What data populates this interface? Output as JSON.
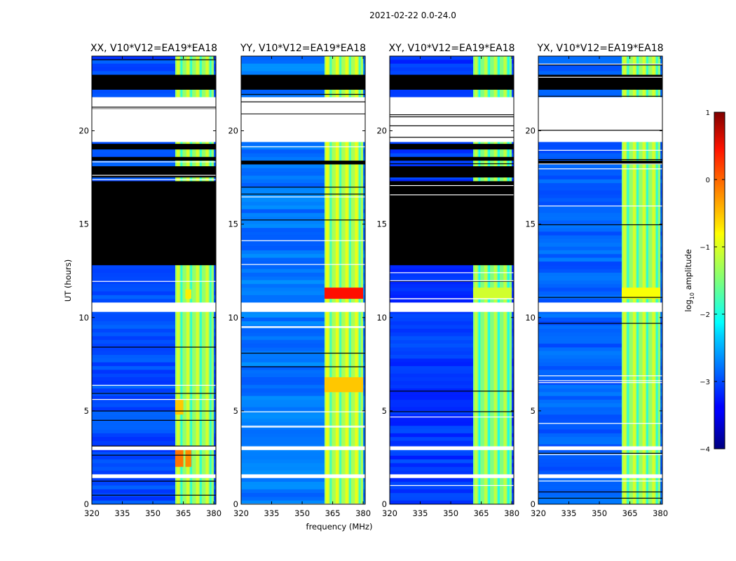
{
  "figure": {
    "suptitle": "2021-02-22 0.0-24.0",
    "colors": {
      "flagged": "#000000",
      "missing": "#ffffff",
      "frame": "#000000"
    }
  },
  "chart_data": {
    "type": "heatmap",
    "xlabel": "frequency (MHz)",
    "ylabel": "UT (hours)",
    "xlim": [
      320,
      381
    ],
    "ylim": [
      0,
      24
    ],
    "xticks": [
      "320",
      "335",
      "350",
      "365",
      "380"
    ],
    "yticks": [
      "0",
      "5",
      "10",
      "15",
      "20"
    ],
    "colorbar": {
      "label_prefix": "log",
      "label_sub": "10",
      "label_suffix": " amplitude",
      "ticks": [
        "1",
        "0",
        "−1",
        "−2",
        "−3",
        "−4"
      ],
      "range": [
        -4,
        1
      ],
      "colormap": "jet"
    },
    "panels": [
      {
        "title": "XX, V10*V12=EA19*EA18",
        "background_log_amp": -3.0,
        "band_mhz": [
          361,
          380
        ],
        "band_log_amp": -1.4,
        "bright": [
          {
            "f0": 361,
            "f1": 365,
            "t0": 2.0,
            "t1": 3.0,
            "log_amp": -0.2
          },
          {
            "f0": 366,
            "f1": 369,
            "t0": 2.0,
            "t1": 3.0,
            "log_amp": -0.3
          },
          {
            "f0": 361,
            "f1": 365,
            "t0": 4.8,
            "t1": 5.6,
            "log_amp": -0.6
          },
          {
            "f0": 366,
            "f1": 369,
            "t0": 11.0,
            "t1": 11.5,
            "log_amp": -0.8
          }
        ],
        "flagged_hours": [
          [
            22.2,
            23.0
          ],
          [
            17.5,
            18.1
          ],
          [
            12.8,
            17.3
          ],
          [
            19.0,
            19.3
          ],
          [
            18.4,
            18.6
          ]
        ],
        "missing_hours": [
          [
            20.0,
            21.8
          ],
          [
            10.3,
            10.8
          ],
          [
            1.4,
            1.6
          ],
          [
            2.9,
            3.1
          ],
          [
            19.4,
            20.0
          ]
        ]
      },
      {
        "title": "YY, V10*V12=EA19*EA18",
        "background_log_amp": -2.8,
        "band_mhz": [
          361,
          380
        ],
        "band_log_amp": -1.3,
        "bright": [
          {
            "f0": 361,
            "f1": 380,
            "t0": 11.0,
            "t1": 11.6,
            "log_amp": 0.3
          },
          {
            "f0": 361,
            "f1": 380,
            "t0": 6.0,
            "t1": 6.8,
            "log_amp": -0.6
          }
        ],
        "flagged_hours": [
          [
            22.2,
            23.0
          ],
          [
            18.2,
            18.4
          ]
        ],
        "missing_hours": [
          [
            19.4,
            21.8
          ],
          [
            10.3,
            10.8
          ],
          [
            1.4,
            1.6
          ],
          [
            2.9,
            3.1
          ]
        ]
      },
      {
        "title": "XY, V10*V12=EA19*EA18",
        "background_log_amp": -3.1,
        "band_mhz": [
          361,
          380
        ],
        "band_log_amp": -1.5,
        "bright": [
          {
            "f0": 361,
            "f1": 380,
            "t0": 11.0,
            "t1": 11.6,
            "log_amp": -1.1
          }
        ],
        "flagged_hours": [
          [
            22.2,
            23.0
          ],
          [
            17.5,
            18.1
          ],
          [
            12.8,
            17.3
          ],
          [
            19.0,
            19.3
          ],
          [
            18.4,
            18.6
          ]
        ],
        "missing_hours": [
          [
            20.0,
            21.8
          ],
          [
            10.3,
            10.8
          ],
          [
            1.4,
            1.6
          ],
          [
            2.9,
            3.1
          ],
          [
            19.4,
            20.0
          ]
        ]
      },
      {
        "title": "YX, V10*V12=EA19*EA18",
        "background_log_amp": -2.9,
        "band_mhz": [
          361,
          380
        ],
        "band_log_amp": -1.4,
        "bright": [
          {
            "f0": 361,
            "f1": 380,
            "t0": 11.0,
            "t1": 11.6,
            "log_amp": -0.9
          }
        ],
        "flagged_hours": [
          [
            22.2,
            23.0
          ],
          [
            18.2,
            18.4
          ]
        ],
        "missing_hours": [
          [
            19.4,
            21.8
          ],
          [
            10.3,
            10.8
          ],
          [
            1.4,
            1.6
          ],
          [
            2.9,
            3.1
          ]
        ]
      }
    ]
  }
}
